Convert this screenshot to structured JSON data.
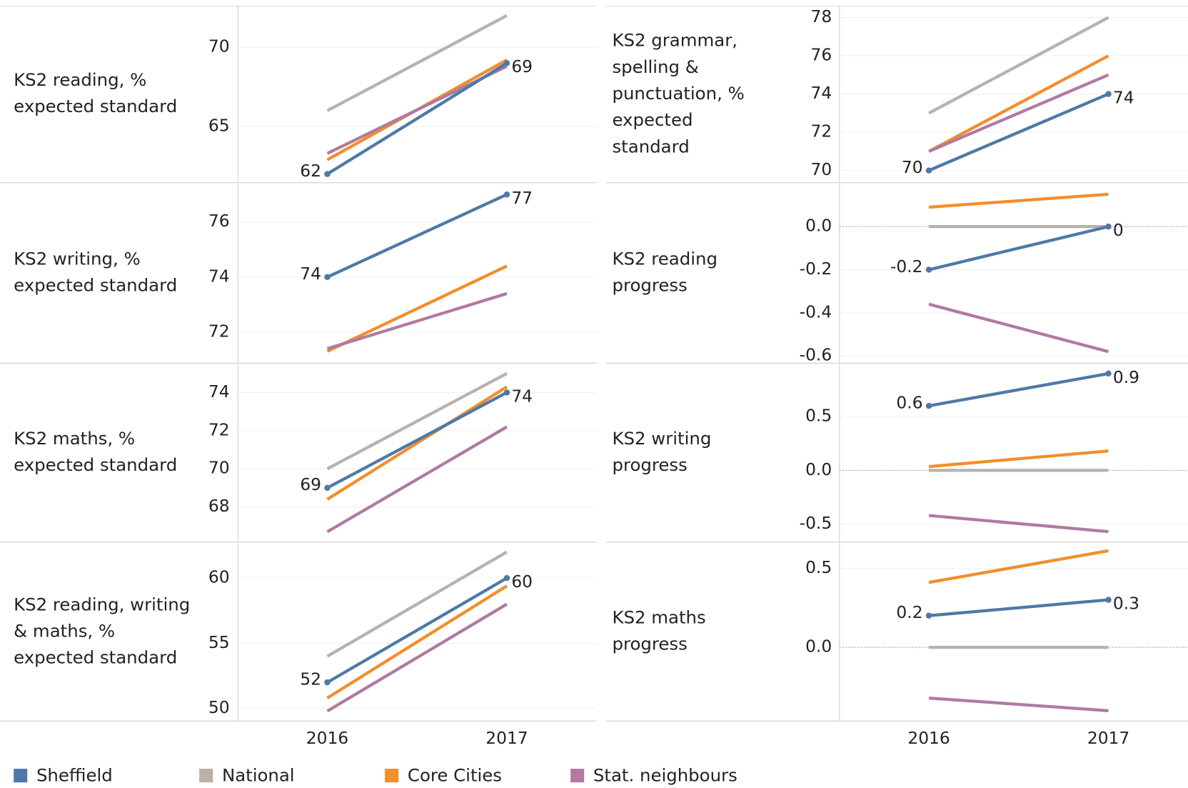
{
  "chart_data": [
    {
      "type": "line",
      "title": "KS2 reading, % expected standard",
      "categories": [
        "2016",
        "2017"
      ],
      "ylim": [
        61.5,
        72.6
      ],
      "yticks": [
        65,
        70
      ],
      "grid": true,
      "series": [
        {
          "name": "Sheffield",
          "color": "#4e79a7",
          "values": [
            62,
            69
          ]
        },
        {
          "name": "National",
          "color": "#bab0ac",
          "values": [
            66,
            72
          ]
        },
        {
          "name": "Core Cities",
          "color": "#f28e2b",
          "values": [
            62.9,
            69.2
          ]
        },
        {
          "name": "Stat. neighbours",
          "color": "#b07aa1",
          "values": [
            63.3,
            68.8
          ]
        }
      ]
    },
    {
      "type": "line",
      "title": "KS2 writing, % expected standard",
      "categories": [
        "2016",
        "2017"
      ],
      "ylim": [
        70.9,
        77.4
      ],
      "yticks": [
        72,
        74,
        76
      ],
      "grid": true,
      "series": [
        {
          "name": "Sheffield",
          "color": "#4e79a7",
          "values": [
            74,
            77
          ]
        },
        {
          "name": "National",
          "color": "#bab0ac",
          "values": [
            null,
            null
          ]
        },
        {
          "name": "Core Cities",
          "color": "#f28e2b",
          "values": [
            71.3,
            74.4
          ]
        },
        {
          "name": "Stat. neighbours",
          "color": "#b07aa1",
          "values": [
            71.4,
            73.4
          ]
        }
      ]
    },
    {
      "type": "line",
      "title": "KS2 maths, % expected standard",
      "categories": [
        "2016",
        "2017"
      ],
      "ylim": [
        66.2,
        75.5
      ],
      "yticks": [
        68,
        70,
        72,
        74
      ],
      "grid": true,
      "series": [
        {
          "name": "Sheffield",
          "color": "#4e79a7",
          "values": [
            69,
            74
          ]
        },
        {
          "name": "National",
          "color": "#bab0ac",
          "values": [
            70,
            75
          ]
        },
        {
          "name": "Core Cities",
          "color": "#f28e2b",
          "values": [
            68.4,
            74.3
          ]
        },
        {
          "name": "Stat. neighbours",
          "color": "#b07aa1",
          "values": [
            66.7,
            72.2
          ]
        }
      ]
    },
    {
      "type": "line",
      "title": "KS2 reading, writing & maths, % expected standard",
      "categories": [
        "2016",
        "2017"
      ],
      "ylim": [
        49.1,
        62.7
      ],
      "yticks": [
        50,
        55,
        60
      ],
      "grid": true,
      "series": [
        {
          "name": "Sheffield",
          "color": "#4e79a7",
          "values": [
            52,
            60
          ]
        },
        {
          "name": "National",
          "color": "#bab0ac",
          "values": [
            54,
            62
          ]
        },
        {
          "name": "Core Cities",
          "color": "#f28e2b",
          "values": [
            50.8,
            59.4
          ]
        },
        {
          "name": "Stat. neighbours",
          "color": "#b07aa1",
          "values": [
            49.8,
            58
          ]
        }
      ]
    },
    {
      "type": "line",
      "title": "KS2 grammar, spelling & punctuation, % expected standard",
      "categories": [
        "2016",
        "2017"
      ],
      "ylim": [
        69.4,
        78.6
      ],
      "yticks": [
        70,
        72,
        74,
        76,
        78
      ],
      "grid": true,
      "series": [
        {
          "name": "Sheffield",
          "color": "#4e79a7",
          "values": [
            70,
            74
          ]
        },
        {
          "name": "National",
          "color": "#bab0ac",
          "values": [
            73,
            78
          ]
        },
        {
          "name": "Core Cities",
          "color": "#f28e2b",
          "values": [
            71,
            76
          ]
        },
        {
          "name": "Stat. neighbours",
          "color": "#b07aa1",
          "values": [
            71,
            75
          ]
        }
      ]
    },
    {
      "type": "line",
      "title": "KS2 reading progress",
      "categories": [
        "2016",
        "2017"
      ],
      "ylim": [
        -0.63,
        0.2
      ],
      "yticks": [
        {
          "value": 0,
          "label": "0.0"
        },
        -0.2,
        -0.4,
        -0.6
      ],
      "grid": true,
      "zero_line": true,
      "series": [
        {
          "name": "Sheffield",
          "color": "#4e79a7",
          "values": [
            -0.2,
            0
          ]
        },
        {
          "name": "National",
          "color": "#bab0ac",
          "values": [
            0,
            0
          ]
        },
        {
          "name": "Core Cities",
          "color": "#f28e2b",
          "values": [
            0.09,
            0.15
          ]
        },
        {
          "name": "Stat. neighbours",
          "color": "#b07aa1",
          "values": [
            -0.36,
            -0.58
          ]
        }
      ]
    },
    {
      "type": "line",
      "title": "KS2 writing progress",
      "categories": [
        "2016",
        "2017"
      ],
      "ylim": [
        -0.66,
        0.99
      ],
      "yticks": [
        0.5,
        {
          "value": 0,
          "label": "0.0"
        },
        -0.5
      ],
      "grid": true,
      "zero_line": true,
      "series": [
        {
          "name": "Sheffield",
          "color": "#4e79a7",
          "values": [
            0.6,
            0.9
          ]
        },
        {
          "name": "National",
          "color": "#bab0ac",
          "values": [
            0,
            0
          ]
        },
        {
          "name": "Core Cities",
          "color": "#f28e2b",
          "values": [
            0.035,
            0.18
          ]
        },
        {
          "name": "Stat. neighbours",
          "color": "#b07aa1",
          "values": [
            -0.42,
            -0.57
          ]
        }
      ]
    },
    {
      "type": "line",
      "title": "KS2 maths progress",
      "categories": [
        "2016",
        "2017"
      ],
      "ylim": [
        -0.46,
        0.66
      ],
      "yticks": [
        0.5,
        {
          "value": 0,
          "label": "0.0"
        }
      ],
      "grid": true,
      "zero_line": true,
      "series": [
        {
          "name": "Sheffield",
          "color": "#4e79a7",
          "values": [
            0.2,
            0.3
          ]
        },
        {
          "name": "National",
          "color": "#bab0ac",
          "values": [
            0,
            0
          ]
        },
        {
          "name": "Core Cities",
          "color": "#f28e2b",
          "values": [
            0.41,
            0.61
          ]
        },
        {
          "name": "Stat. neighbours",
          "color": "#b07aa1",
          "values": [
            -0.32,
            -0.4
          ]
        }
      ]
    }
  ]
}
